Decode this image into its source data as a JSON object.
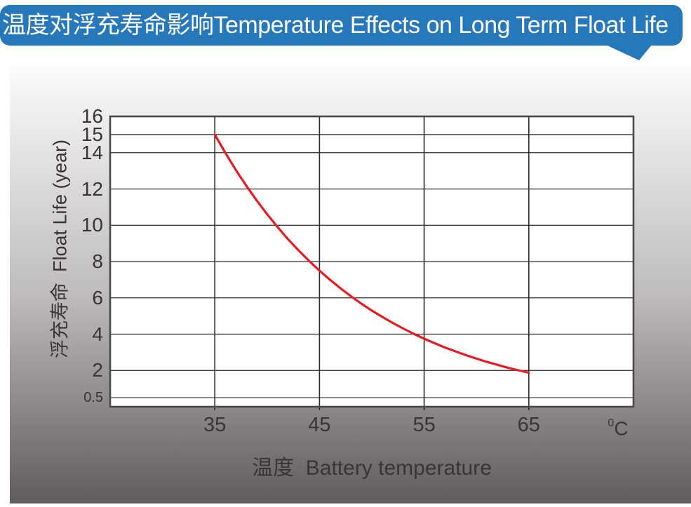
{
  "banner": {
    "title": "温度对浮充寿命影响Temperature Effects on Long Term Float Life"
  },
  "chart_data": {
    "type": "line",
    "title": "温度对浮充寿命影响Temperature Effects on Long Term Float Life",
    "xlabel": "温度  Battery temperature",
    "ylabel": "浮充寿命  Float Life (year)",
    "x_unit_sup": "0",
    "x_unit_base": "C",
    "xlim": [
      25,
      75
    ],
    "ylim": [
      0,
      16
    ],
    "x_ticks": [
      35,
      45,
      55,
      65
    ],
    "y_ticks": [
      16,
      15,
      14,
      12,
      10,
      8,
      6,
      4,
      2,
      0.5
    ],
    "grid": true,
    "legend": "none",
    "series": [
      {
        "name": "float-life",
        "x": [
          35,
          36,
          37,
          38,
          39,
          40,
          41,
          42,
          43,
          44,
          45,
          46,
          47,
          48,
          49,
          50,
          51,
          52,
          53,
          54,
          55,
          56,
          57,
          58,
          59,
          60,
          61,
          62,
          63,
          64,
          65
        ],
        "y": [
          15,
          14,
          13.06,
          12.18,
          11.37,
          10.61,
          9.9,
          9.23,
          8.62,
          8.04,
          7.5,
          7,
          6.53,
          6.09,
          5.68,
          5.3,
          4.95,
          4.62,
          4.31,
          4.02,
          3.75,
          3.5,
          3.26,
          3.05,
          2.84,
          2.65,
          2.47,
          2.31,
          2.15,
          2.01,
          1.88
        ]
      }
    ]
  },
  "colors": {
    "banner_bg": "#2777bb",
    "banner_text": "#ffffff",
    "curve": "#e81b23",
    "grid_line": "#2e2a2b",
    "plot_border": "#4b484a",
    "text": "#3a3436",
    "plot_bg": "#ffffff",
    "panel_gradient_top": "#fbfbfb",
    "panel_gradient_mid": "#bebcbd",
    "panel_gradient_bottom": "#5f5c5d"
  }
}
